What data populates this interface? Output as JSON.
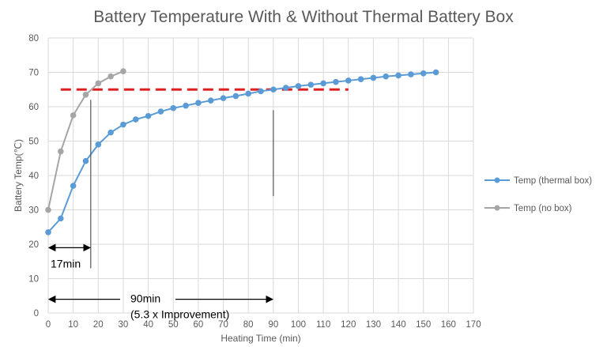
{
  "chart_data": {
    "type": "line",
    "title": "Battery Temperature With & Without Thermal Battery Box",
    "xlabel": "Heating Time (min)",
    "ylabel": "Battery Temp(℃)",
    "xlim": [
      0,
      170
    ],
    "ylim": [
      0,
      80
    ],
    "xticks": [
      0,
      10,
      20,
      30,
      40,
      50,
      60,
      70,
      80,
      90,
      100,
      110,
      120,
      130,
      140,
      150,
      160,
      170
    ],
    "yticks": [
      0,
      10,
      20,
      30,
      40,
      50,
      60,
      70,
      80
    ],
    "grid": true,
    "legend_position": "right",
    "series": [
      {
        "name": "Temp (thermal box)",
        "color": "#5b9bd5",
        "x": [
          0,
          5,
          10,
          15,
          20,
          25,
          30,
          35,
          40,
          45,
          50,
          55,
          60,
          65,
          70,
          75,
          80,
          85,
          90,
          95,
          100,
          105,
          110,
          115,
          120,
          125,
          130,
          135,
          140,
          145,
          150,
          155
        ],
        "y": [
          23.5,
          27.5,
          37,
          44.2,
          49,
          52.5,
          54.8,
          56.3,
          57.3,
          58.6,
          59.6,
          60.3,
          61.1,
          61.8,
          62.5,
          63.1,
          63.8,
          64.5,
          65,
          65.5,
          66,
          66.4,
          66.8,
          67.2,
          67.6,
          68,
          68.4,
          68.8,
          69.1,
          69.4,
          69.7,
          70
        ]
      },
      {
        "name": "Temp (no box)",
        "color": "#a5a5a5",
        "x": [
          0,
          5,
          10,
          15,
          20,
          25,
          30
        ],
        "y": [
          30,
          47,
          57.5,
          63.5,
          66.8,
          68.8,
          70.3
        ]
      }
    ],
    "reference_line": {
      "y": 65,
      "x": [
        5,
        120
      ],
      "color": "#e02020",
      "style": "dashed"
    },
    "annotations": [
      {
        "text": "17min",
        "arrow_x": [
          0,
          17
        ],
        "arrow_y": 19,
        "marker_x": 17,
        "marker_y": [
          13,
          62
        ]
      },
      {
        "text": "90min",
        "subtext": "(5.3 x Improvement)",
        "arrow_x": [
          0,
          90
        ],
        "arrow_y": 4,
        "marker_x": 90,
        "marker_y": [
          34,
          59
        ]
      }
    ]
  }
}
